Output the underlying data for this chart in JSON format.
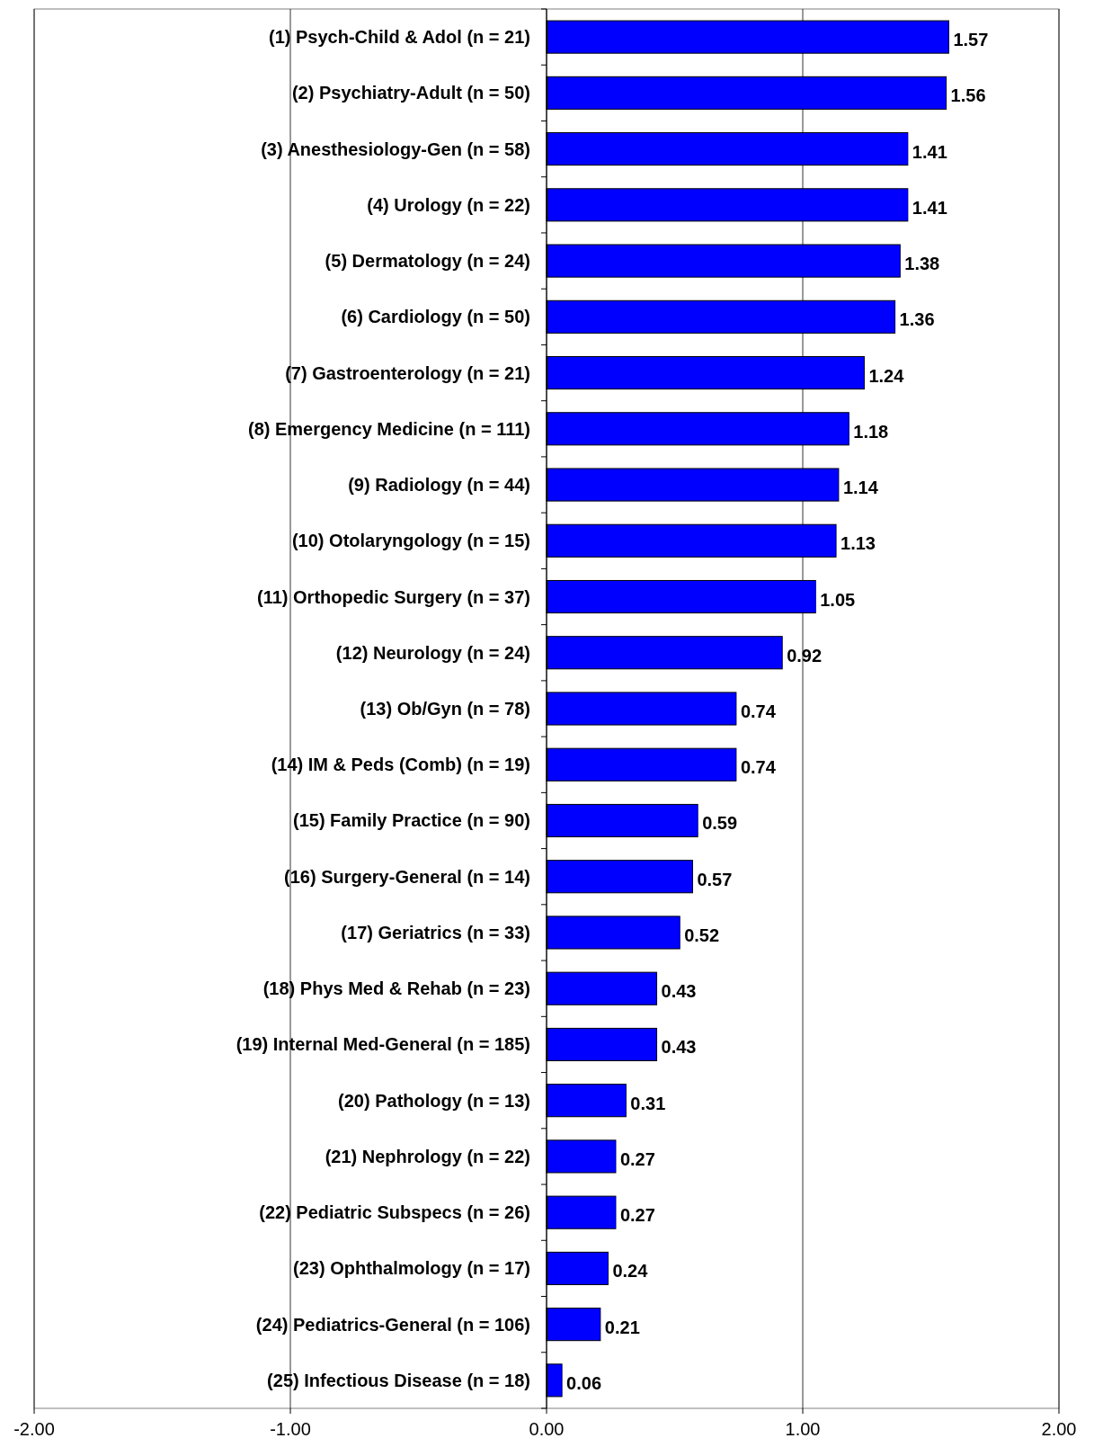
{
  "chart_data": {
    "type": "bar",
    "orientation": "horizontal",
    "categories": [
      "(1) Psych-Child & Adol (n = 21)",
      "(2) Psychiatry-Adult (n = 50)",
      "(3) Anesthesiology-Gen (n = 58)",
      "(4) Urology (n = 22)",
      "(5) Dermatology (n = 24)",
      "(6) Cardiology (n = 50)",
      "(7) Gastroenterology (n = 21)",
      "(8) Emergency Medicine (n = 111)",
      "(9) Radiology (n = 44)",
      "(10) Otolaryngology (n = 15)",
      "(11) Orthopedic Surgery (n = 37)",
      "(12) Neurology (n = 24)",
      "(13) Ob/Gyn (n = 78)",
      "(14) IM & Peds (Comb) (n = 19)",
      "(15) Family Practice (n = 90)",
      "(16) Surgery-General (n = 14)",
      "(17) Geriatrics (n = 33)",
      "(18) Phys Med & Rehab (n = 23)",
      "(19) Internal Med-General (n = 185)",
      "(20) Pathology (n = 13)",
      "(21) Nephrology (n = 22)",
      "(22) Pediatric Subspecs (n = 26)",
      "(23) Ophthalmology (n = 17)",
      "(24) Pediatrics-General (n = 106)",
      "(25) Infectious Disease (n = 18)"
    ],
    "values": [
      1.57,
      1.56,
      1.41,
      1.41,
      1.38,
      1.36,
      1.24,
      1.18,
      1.14,
      1.13,
      1.05,
      0.92,
      0.74,
      0.74,
      0.59,
      0.57,
      0.52,
      0.43,
      0.43,
      0.31,
      0.27,
      0.27,
      0.24,
      0.21,
      0.06
    ],
    "color": "#0000ff",
    "xlim": [
      -2,
      2
    ],
    "xticks": [
      {
        "value": -2,
        "label": "-2.00"
      },
      {
        "value": -1,
        "label": "-1.00"
      },
      {
        "value": 0,
        "label": "0.00"
      },
      {
        "value": 1,
        "label": "1.00"
      },
      {
        "value": 2,
        "label": "2.00"
      }
    ],
    "grid": "x",
    "data_labels": true
  }
}
